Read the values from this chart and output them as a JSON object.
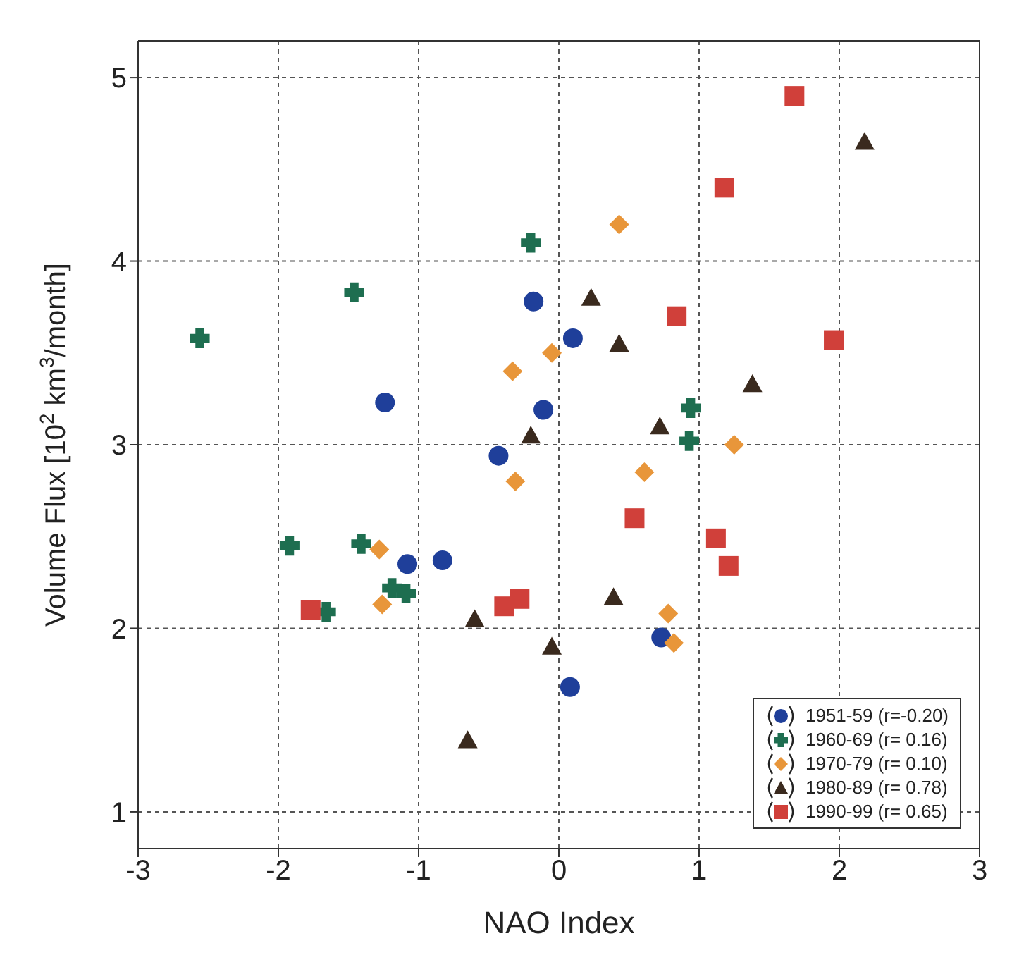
{
  "chart_data": {
    "type": "scatter",
    "xlabel": "NAO Index",
    "ylabel": "Volume Flux [10$^{2}$ km$^{3}$/month]",
    "xlim": [
      -3,
      3
    ],
    "ylim": [
      0.8,
      5.2
    ],
    "xticks": [
      -3,
      -2,
      -1,
      0,
      1,
      2,
      3
    ],
    "yticks": [
      1,
      2,
      3,
      4,
      5
    ],
    "grid": true,
    "legend": "bottom right",
    "series": [
      {
        "name": "1951-59 (r=-0.20)",
        "color": "#1f3f9a",
        "marker": "circle",
        "x": [
          -0.18,
          0.1,
          -1.24,
          -0.11,
          -0.43,
          -1.08,
          -0.83,
          0.73,
          0.08
        ],
        "values": [
          3.78,
          3.58,
          3.23,
          3.19,
          2.94,
          2.35,
          2.37,
          1.95,
          1.68
        ]
      },
      {
        "name": "1960-69 (r= 0.16)",
        "color": "#1e6e50",
        "marker": "cross",
        "x": [
          -0.2,
          -1.46,
          -2.56,
          0.94,
          0.93,
          -1.92,
          -1.41,
          -1.19,
          -1.09,
          -1.66
        ],
        "values": [
          4.1,
          3.83,
          3.58,
          3.2,
          3.02,
          2.45,
          2.46,
          2.22,
          2.19,
          2.09
        ]
      },
      {
        "name": "1970-79 (r= 0.10)",
        "color": "#e8963a",
        "marker": "diamond",
        "x": [
          -0.05,
          -0.33,
          0.43,
          1.25,
          0.61,
          -0.31,
          -1.28,
          -1.26,
          0.78,
          0.82
        ],
        "values": [
          3.5,
          3.4,
          4.2,
          3.0,
          2.85,
          2.8,
          2.43,
          2.13,
          2.08,
          1.92
        ]
      },
      {
        "name": "1980-89 (r= 0.78)",
        "color": "#3a2a1e",
        "marker": "triangle",
        "x": [
          0.23,
          -0.2,
          0.43,
          1.38,
          0.72,
          0.39,
          -0.6,
          -0.05,
          -0.65,
          2.18
        ],
        "values": [
          3.8,
          3.05,
          3.55,
          3.33,
          3.1,
          2.17,
          2.05,
          1.9,
          1.39,
          4.65
        ]
      },
      {
        "name": "1990-99 (r= 0.65)",
        "color": "#d0403a",
        "marker": "square",
        "x": [
          1.68,
          1.18,
          0.84,
          1.96,
          0.54,
          1.12,
          1.21,
          -1.77,
          -0.39,
          -0.28
        ],
        "values": [
          4.9,
          4.4,
          3.7,
          3.57,
          2.6,
          2.49,
          2.34,
          2.1,
          2.12,
          2.16
        ]
      }
    ]
  }
}
